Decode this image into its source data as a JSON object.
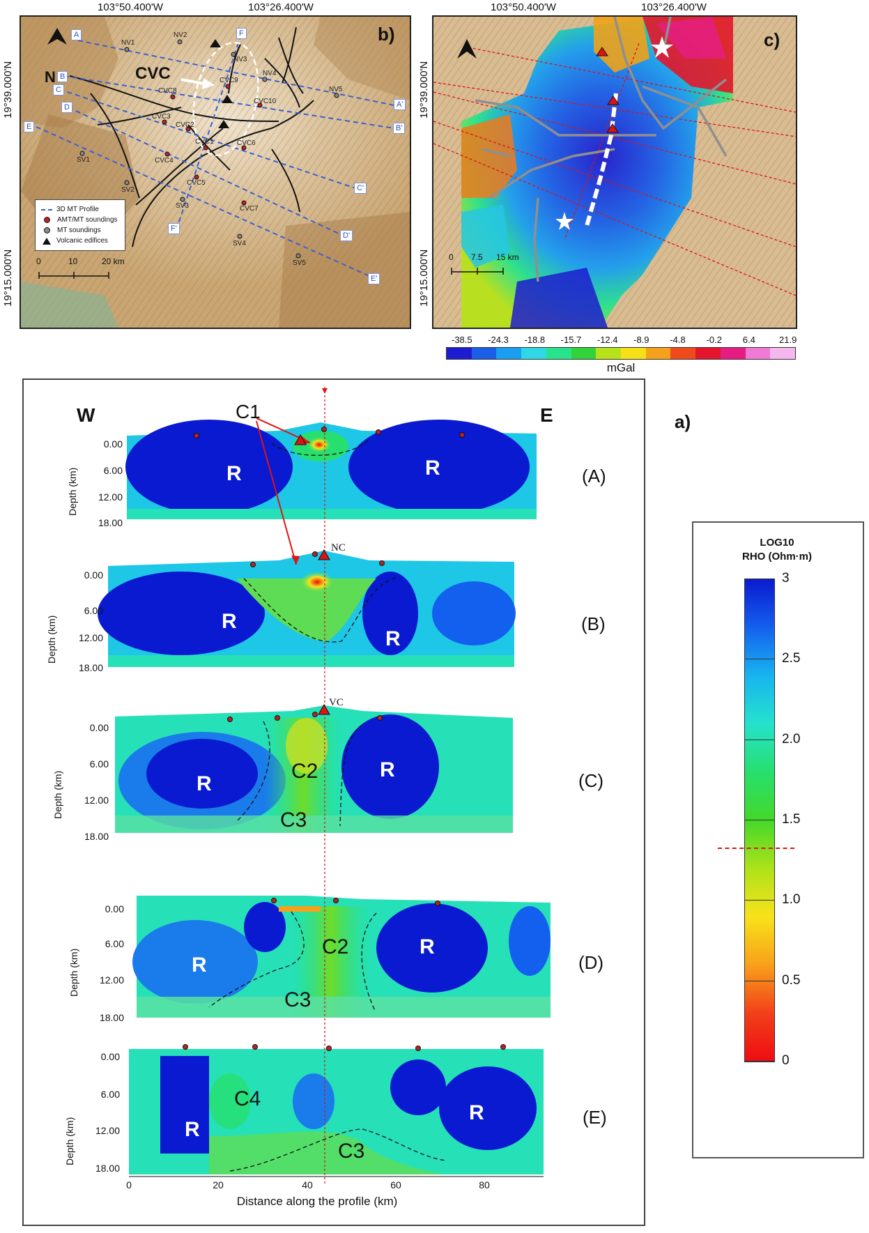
{
  "panel_b": {
    "letter": "b)",
    "lon_labels": [
      "103°50.400'W",
      "103°26.400'W"
    ],
    "lat_labels": [
      "19°39.000'N",
      "19°15.000'N"
    ],
    "north_label": "N",
    "cvc_label": "CVC",
    "profile_labels": [
      "A",
      "A'",
      "B",
      "B'",
      "C",
      "C'",
      "D",
      "D'",
      "E",
      "E'",
      "F",
      "F'"
    ],
    "sites": [
      "NV1",
      "NV2",
      "NV3",
      "NV4",
      "NV5",
      "CVC8",
      "CVC9",
      "CVC10",
      "CVC3",
      "CVC2",
      "CVC1",
      "CVC6",
      "CVC4",
      "CVC5",
      "CVC7",
      "SV1",
      "SV2",
      "SV3",
      "SV4",
      "SV5"
    ],
    "legend": [
      "3D MT Profile",
      "AMT/MT soundings",
      "MT soundings",
      "Volcanic edifices"
    ],
    "scale_labels": [
      "0",
      "10",
      "20 km"
    ]
  },
  "panel_c": {
    "letter": "c)",
    "lon_labels": [
      "103°50.400'W",
      "103°26.400'W"
    ],
    "lat_labels": [
      "19°39.000'N",
      "19°15.000'N"
    ],
    "scale_labels": [
      "0",
      "7.5",
      "15 km"
    ],
    "colorbar_ticks": [
      "-38.5",
      "-24.3",
      "-18.8",
      "-15.7",
      "-12.4",
      "-8.9",
      "-4.8",
      "-0.2",
      "6.4",
      "21.9"
    ],
    "colorbar_unit": "mGal",
    "colorbar_colors": [
      "#1f1ccf",
      "#1b5fe8",
      "#1a9ef0",
      "#2fd8e4",
      "#27e38c",
      "#31d23a",
      "#b7e21a",
      "#f7e018",
      "#f5a11b",
      "#ef4a1b",
      "#e3152d",
      "#e51d82",
      "#ef7ad5",
      "#f6b6ee"
    ]
  },
  "panel_a": {
    "letter": "a)",
    "west_label": "W",
    "east_label": "E",
    "c1_label": "C1",
    "depth_ticks": [
      "0.00",
      "6.00",
      "12.00",
      "18.00"
    ],
    "depth_axis_title": "Depth (km)",
    "x_ticks": [
      "0",
      "20",
      "40",
      "60",
      "80"
    ],
    "x_axis_title": "Distance along the profile (km)",
    "volcano_labels": {
      "B": "NC",
      "C": "VC"
    },
    "sections": [
      {
        "id": "(A)",
        "labels": [
          "R",
          "R"
        ]
      },
      {
        "id": "(B)",
        "labels": [
          "R",
          "R"
        ]
      },
      {
        "id": "(C)",
        "labels": [
          "R",
          "C2",
          "R",
          "C3"
        ]
      },
      {
        "id": "(D)",
        "labels": [
          "R",
          "C2",
          "R",
          "C3"
        ]
      },
      {
        "id": "(E)",
        "labels": [
          "C4",
          "R",
          "R",
          "C3"
        ]
      }
    ]
  },
  "resistivity_colorbar": {
    "title_line1": "LOG10",
    "title_line2": "RHO (Ohm·m)",
    "ticks": [
      "3",
      "2.5",
      "2.0",
      "1.5",
      "1.0",
      "0.5",
      "0"
    ],
    "colors": [
      "#0a1ad0",
      "#1460ee",
      "#18b4f0",
      "#25e2cc",
      "#27df6e",
      "#44d82a",
      "#aee21a",
      "#f8e21a",
      "#f8a01a",
      "#f2401a",
      "#ee0c12"
    ]
  }
}
